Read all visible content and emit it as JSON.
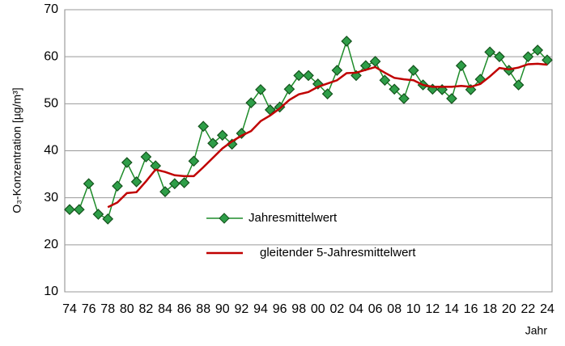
{
  "chart_data": {
    "type": "line",
    "y_label": "O₃-Konzentration [µg/m³]",
    "x_label": "Jahr",
    "categories": [
      "74",
      null,
      "76",
      null,
      "78",
      null,
      "80",
      null,
      "82",
      null,
      "84",
      null,
      "86",
      null,
      "88",
      null,
      "90",
      null,
      "92",
      null,
      "94",
      null,
      "96",
      null,
      "98",
      null,
      "00",
      null,
      "02",
      null,
      "04",
      null,
      "06",
      null,
      "08",
      null,
      "10",
      null,
      "12",
      null,
      "14",
      null,
      "16",
      null,
      "18",
      null,
      "20",
      null,
      "22",
      null,
      "24"
    ],
    "series": [
      {
        "name": "Jahresmittelwert",
        "color": "#1e8c2a",
        "marker": "diamond",
        "values": [
          27.5,
          27.5,
          33.0,
          26.5,
          25.5,
          32.5,
          37.5,
          33.4,
          38.7,
          36.8,
          31.3,
          33.0,
          33.2,
          37.8,
          45.2,
          41.6,
          43.3,
          41.4,
          43.7,
          50.2,
          53.0,
          48.7,
          49.3,
          53.1,
          56.0,
          56.0,
          54.2,
          52.1,
          57.1,
          63.3,
          56.0,
          58.1,
          59.0,
          55.0,
          53.1,
          51.1,
          57.1,
          54.0,
          53.1,
          53.0,
          51.1,
          58.1,
          53.0,
          55.2,
          61.0,
          60.0,
          57.1,
          54.0,
          60.0,
          61.4,
          59.3
        ]
      },
      {
        "name": "gleitender 5-Jahresmittelwert",
        "color": "#c00000",
        "values": [
          null,
          null,
          null,
          null,
          28.0,
          29.0,
          31.0,
          31.2,
          33.5,
          36.0,
          35.5,
          34.8,
          34.6,
          34.6,
          36.5,
          38.5,
          40.5,
          42.0,
          43.2,
          44.2,
          46.3,
          47.5,
          49.0,
          50.8,
          52.0,
          52.5,
          53.6,
          54.3,
          55.0,
          56.5,
          56.6,
          57.2,
          57.8,
          56.6,
          55.5,
          55.2,
          55.0,
          54.0,
          53.6,
          53.6,
          53.6,
          53.8,
          53.6,
          54.2,
          55.8,
          57.6,
          57.3,
          57.7,
          58.4,
          58.5,
          58.3
        ]
      }
    ],
    "ylim": [
      10,
      70
    ],
    "yticks": [
      10,
      20,
      30,
      40,
      50,
      60,
      70
    ],
    "grid": true,
    "legend": "lower-center"
  }
}
